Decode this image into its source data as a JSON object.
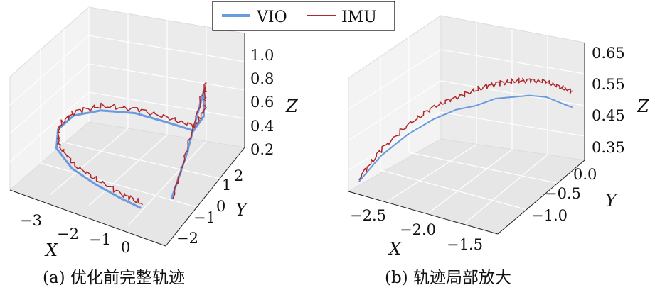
{
  "legend": {
    "items": [
      {
        "label": "VIO",
        "color": "#6a9ae0"
      },
      {
        "label": "IMU",
        "color": "#b0282d"
      }
    ],
    "position": "top-center"
  },
  "chart_data": [
    {
      "type": "line3d",
      "caption": "(a) 优化前完整轨迹",
      "xlabel": "X",
      "ylabel": "Y",
      "zlabel": "Z",
      "x_ticks": [
        "−3",
        "−2",
        "−1",
        "0"
      ],
      "y_ticks": [
        "−2",
        "−1",
        "0",
        "1",
        "2"
      ],
      "z_ticks": [
        "0.2",
        "0.4",
        "0.6",
        "0.8",
        "1.0"
      ],
      "xlim": [
        -3.6,
        0.8
      ],
      "ylim": [
        -2.6,
        2.6
      ],
      "zlim": [
        0.1,
        1.05
      ],
      "grid": true,
      "series": [
        {
          "name": "VIO",
          "line_width": 3,
          "x": [
            -0.2,
            -0.8,
            -1.6,
            -2.4,
            -3.1,
            -3.4,
            -3.3,
            -2.8,
            -2.0,
            -1.1,
            -0.3,
            0.2,
            0.5,
            0.3,
            0.1
          ],
          "y": [
            -1.9,
            -1.8,
            -1.6,
            -1.3,
            -0.7,
            0.1,
            0.9,
            1.5,
            1.9,
            2.0,
            1.8,
            1.3,
            0.6,
            -0.1,
            -0.6
          ],
          "z": [
            0.2,
            0.2,
            0.2,
            0.2,
            0.2,
            0.2,
            0.2,
            0.2,
            0.2,
            0.2,
            0.25,
            0.5,
            0.85,
            0.4,
            0.1
          ]
        },
        {
          "name": "IMU",
          "line_width": 1.5,
          "x": [
            -0.2,
            -0.8,
            -1.6,
            -2.4,
            -3.1,
            -3.4,
            -3.3,
            -2.8,
            -2.0,
            -1.1,
            -0.3,
            0.2,
            0.5,
            0.3,
            0.1
          ],
          "y": [
            -1.8,
            -1.7,
            -1.5,
            -1.2,
            -0.6,
            0.2,
            1.0,
            1.6,
            2.0,
            2.1,
            1.9,
            1.4,
            0.7,
            0.0,
            -0.5
          ],
          "z": [
            0.22,
            0.22,
            0.22,
            0.22,
            0.22,
            0.22,
            0.22,
            0.22,
            0.22,
            0.22,
            0.27,
            0.55,
            0.9,
            0.45,
            0.1
          ]
        }
      ]
    },
    {
      "type": "line3d",
      "caption": "(b) 轨迹局部放大",
      "xlabel": "X",
      "ylabel": "Y",
      "zlabel": "Z",
      "x_ticks": [
        "−2.5",
        "−2.0",
        "−1.5"
      ],
      "y_ticks": [
        "−1.0",
        "−0.5",
        "0.0"
      ],
      "z_ticks": [
        "0.35",
        "0.45",
        "0.55",
        "0.65"
      ],
      "xlim": [
        -2.9,
        -1.3
      ],
      "ylim": [
        -1.4,
        0.1
      ],
      "zlim": [
        0.3,
        0.68
      ],
      "grid": true,
      "series": [
        {
          "name": "VIO",
          "line_width": 2,
          "x": [
            -2.85,
            -2.8,
            -2.7,
            -2.55,
            -2.4,
            -2.25,
            -2.1,
            -1.95,
            -1.8,
            -1.65,
            -1.5,
            -1.4
          ],
          "y": [
            -1.3,
            -1.0,
            -0.7,
            -0.5,
            -0.35,
            -0.25,
            -0.15,
            -0.1,
            -0.05,
            0.0,
            0.02,
            0.05
          ],
          "z": [
            0.32,
            0.36,
            0.39,
            0.42,
            0.44,
            0.45,
            0.47,
            0.48,
            0.49,
            0.49,
            0.48,
            0.47
          ]
        },
        {
          "name": "IMU",
          "line_width": 1.5,
          "x": [
            -2.85,
            -2.8,
            -2.7,
            -2.55,
            -2.4,
            -2.25,
            -2.1,
            -1.95,
            -1.8,
            -1.65,
            -1.5,
            -1.4
          ],
          "y": [
            -1.3,
            -1.0,
            -0.7,
            -0.5,
            -0.35,
            -0.25,
            -0.15,
            -0.1,
            -0.05,
            0.0,
            0.02,
            0.05
          ],
          "z": [
            0.33,
            0.38,
            0.42,
            0.46,
            0.48,
            0.5,
            0.52,
            0.53,
            0.54,
            0.54,
            0.53,
            0.52
          ]
        }
      ]
    }
  ]
}
